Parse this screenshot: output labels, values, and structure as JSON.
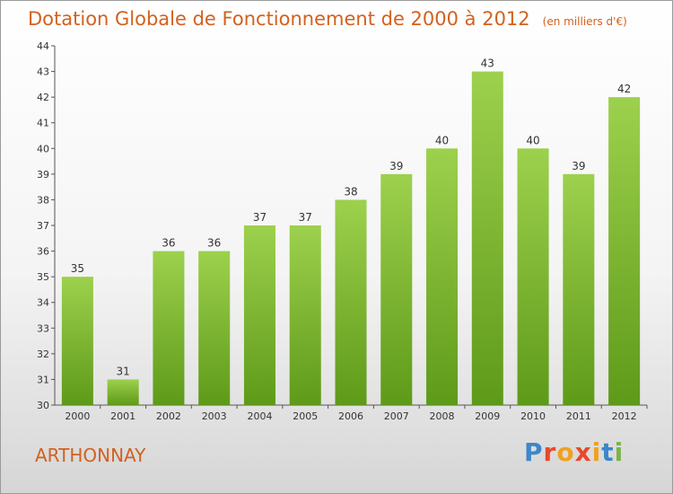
{
  "header": {
    "title": "Dotation Globale de Fonctionnement de 2000 à 2012",
    "subtitle": "(en milliers d'€)"
  },
  "footer": {
    "commune": "ARTHONNAY",
    "logo_letters": [
      "P",
      "r",
      "o",
      "x",
      "i",
      "t",
      "i"
    ],
    "logo_colors": [
      "#3a87c9",
      "#e9472b",
      "#f0a121",
      "#e9472b",
      "#f0a121",
      "#3a87c9",
      "#7ab648"
    ]
  },
  "colors": {
    "bar_top": "#9dd14d",
    "bar_bottom": "#5e9a19",
    "title": "#d2611f"
  },
  "chart_data": {
    "type": "bar",
    "categories": [
      "2000",
      "2001",
      "2002",
      "2003",
      "2004",
      "2005",
      "2006",
      "2007",
      "2008",
      "2009",
      "2010",
      "2011",
      "2012"
    ],
    "values": [
      35,
      31,
      36,
      36,
      37,
      37,
      38,
      39,
      40,
      43,
      40,
      39,
      42
    ],
    "ylim": [
      30,
      44
    ],
    "yticks": [
      30,
      31,
      32,
      33,
      34,
      35,
      36,
      37,
      38,
      39,
      40,
      41,
      42,
      43,
      44
    ],
    "xlabel": "",
    "ylabel": "",
    "grid": false,
    "legend": "none"
  }
}
